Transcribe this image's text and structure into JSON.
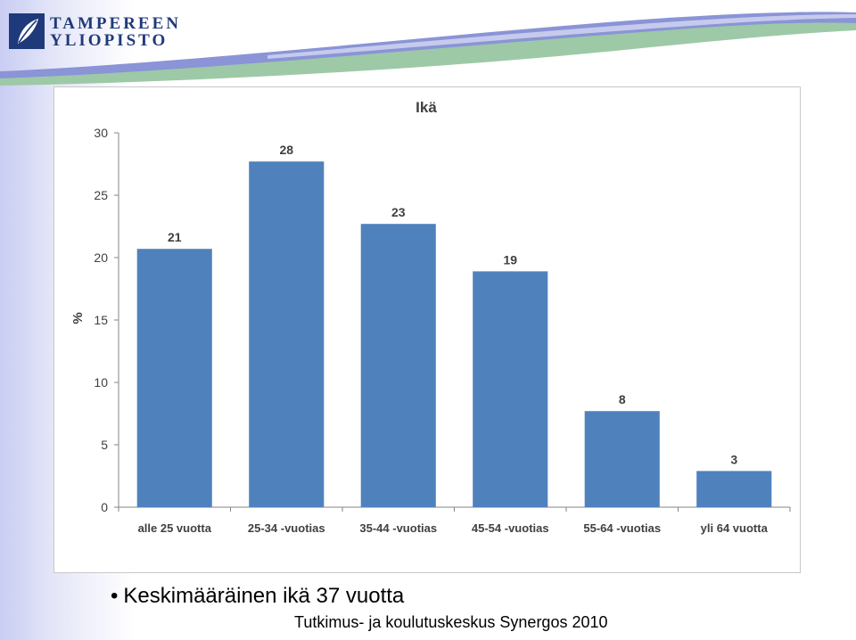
{
  "colors": {
    "bar": "#4f81bd",
    "logo_blue": "#1f3a7a",
    "band_blue": "#8a94d6",
    "band_green": "#9dc9a7",
    "gridline": "#d9d9d9"
  },
  "logo": {
    "icon": "leaf-emblem-icon",
    "line1": "TAMPEREEN",
    "line2": "YLIOPISTO"
  },
  "chart_data": {
    "type": "bar",
    "title": "Ikä",
    "xlabel": "",
    "ylabel": "%",
    "ylim": [
      0,
      30
    ],
    "yticks": [
      0,
      5,
      10,
      15,
      20,
      25,
      30
    ],
    "grid": false,
    "legend": "none",
    "categories": [
      "alle 25 vuotta",
      "25-34 -vuotias",
      "35-44 -vuotias",
      "45-54 -vuotias",
      "55-64 -vuotias",
      "yli 64 vuotta"
    ],
    "values": [
      20.7,
      27.7,
      22.7,
      18.9,
      7.7,
      2.9
    ],
    "data_labels": [
      "21",
      "28",
      "23",
      "19",
      "8",
      "3"
    ]
  },
  "bullet": {
    "text": "Keskimääräinen ikä 37 vuotta"
  },
  "footer": {
    "text": "Tutkimus- ja koulutuskeskus Synergos 2010"
  }
}
